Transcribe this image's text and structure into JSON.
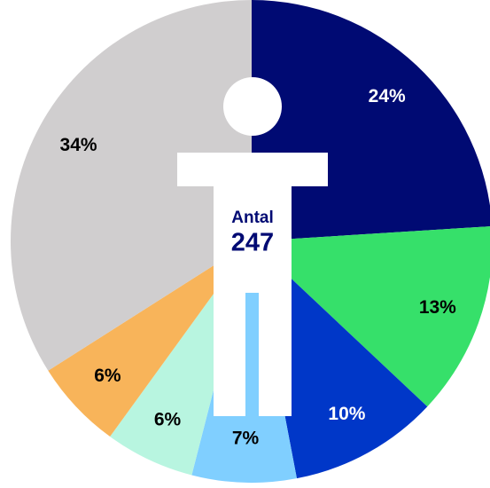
{
  "chart_data": {
    "type": "pie",
    "center_label": "Antal",
    "center_value": 247,
    "categories": [
      null,
      null,
      null,
      null,
      null,
      null,
      null
    ],
    "values": [
      24,
      13,
      10,
      7,
      6,
      6,
      34
    ],
    "value_labels": [
      "24%",
      "13%",
      "10%",
      "7%",
      "6%",
      "6%",
      "34%"
    ],
    "colors": [
      "#000a73",
      "#36e06a",
      "#0037c8",
      "#80cfff",
      "#b8f5e0",
      "#f8b45a",
      "#d0cecf"
    ]
  }
}
